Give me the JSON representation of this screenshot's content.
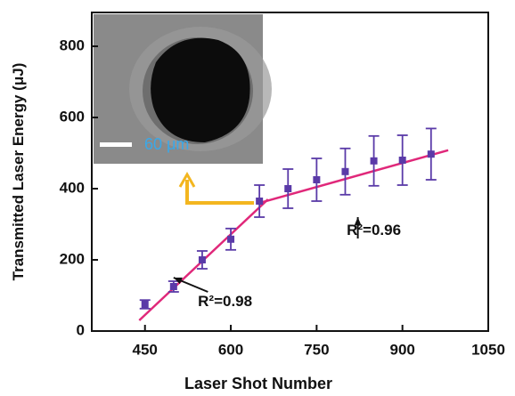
{
  "chart_data": {
    "type": "scatter",
    "x_label": "Laser Shot Number",
    "y_label": "Transmitted Laser Energy (μJ)",
    "xlim": [
      357,
      1050
    ],
    "xticks": [
      450,
      600,
      750,
      900,
      1050
    ],
    "ylim": [
      0,
      895
    ],
    "yticks": [
      0,
      200,
      400,
      600,
      800
    ],
    "series": [
      {
        "x": [
          450,
          500,
          550,
          600,
          650,
          700,
          750,
          800,
          850,
          900,
          950
        ],
        "values": [
          75,
          125,
          200,
          258,
          365,
          400,
          425,
          448,
          478,
          480,
          497
        ],
        "errors": [
          12,
          15,
          25,
          30,
          45,
          55,
          60,
          65,
          70,
          70,
          72
        ],
        "color": "#5a3aa8"
      }
    ],
    "fits": [
      {
        "x": [
          440,
          665
        ],
        "values": [
          30,
          370
        ],
        "color": "#e0287a"
      },
      {
        "x": [
          655,
          980
        ],
        "values": [
          362,
          508
        ],
        "color": "#e0287a"
      }
    ],
    "annotations": [
      {
        "text": "R²=0.98",
        "x": 590,
        "y": 70
      },
      {
        "text": "R²=0.96",
        "x": 850,
        "y": 270
      }
    ],
    "inset_scale_label": "60 μm"
  }
}
